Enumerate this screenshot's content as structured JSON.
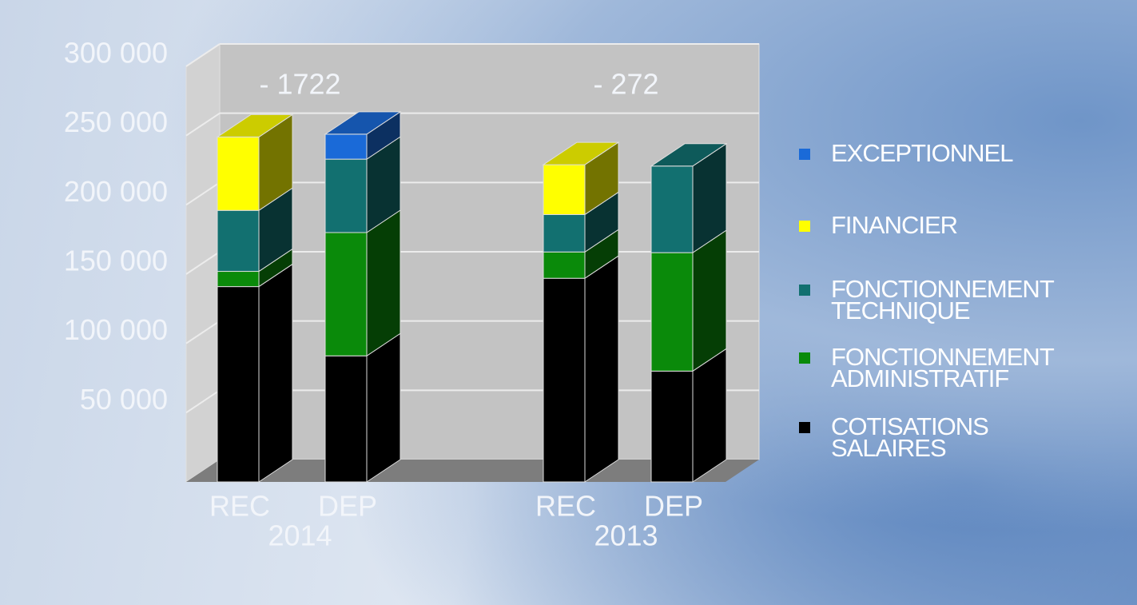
{
  "chart_data": {
    "type": "bar3d_stacked",
    "categories": [
      "REC",
      "DEP",
      "REC",
      "DEP"
    ],
    "groups": [
      "2014",
      "2013"
    ],
    "annotations": [
      "- 1722",
      "- 272"
    ],
    "series": [
      {
        "name": "EXCEPTIONNEL",
        "color": "#1a6ad8",
        "values": [
          null,
          18000,
          null,
          null
        ]
      },
      {
        "name": "FINANCIER",
        "color": "#ffff00",
        "values": [
          53000,
          null,
          36000,
          null
        ]
      },
      {
        "name": "FONCTIONNEMENT\nTECHNIQUE",
        "color": "#127070",
        "values": [
          44000,
          53000,
          27000,
          62500
        ]
      },
      {
        "name": "FONCTIONNEMENT\nADMINISTRATIF",
        "color": "#0a8a0a",
        "values": [
          11000,
          89000,
          19000,
          85500
        ]
      },
      {
        "name": "COTISATIONS\nSALAIRES",
        "color": "#000000",
        "values": [
          141000,
          91000,
          147000,
          80000
        ]
      }
    ],
    "ylim": [
      0,
      300000
    ],
    "yticks": [
      {
        "value": 50000,
        "label": "50 000"
      },
      {
        "value": 100000,
        "label": "100 000"
      },
      {
        "value": 150000,
        "label": "150 000"
      },
      {
        "value": 200000,
        "label": "200 000"
      },
      {
        "value": 250000,
        "label": "250 000"
      },
      {
        "value": 300000,
        "label": "300 000"
      }
    ],
    "grid": true
  }
}
